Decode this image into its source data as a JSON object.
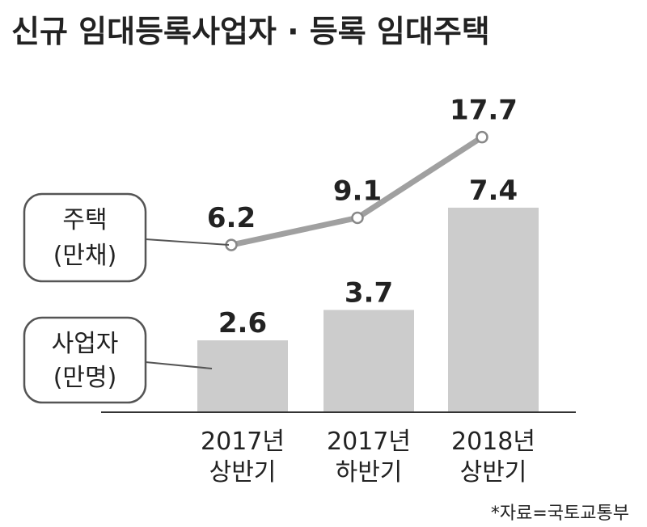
{
  "chart_data": {
    "type": "bar",
    "title": "신규 임대등록사업자 · 등록 임대주택",
    "categories": [
      [
        "2017년",
        "상반기"
      ],
      [
        "2017년",
        "하반기"
      ],
      [
        "2018년",
        "상반기"
      ]
    ],
    "series": [
      {
        "type": "bar",
        "label": [
          "사업자",
          "(만명)"
        ],
        "values": [
          2.6,
          3.7,
          7.4
        ],
        "value_labels": [
          "2.6",
          "3.7",
          "7.4"
        ]
      },
      {
        "type": "line",
        "label": [
          "주택",
          "(만채)"
        ],
        "values": [
          6.2,
          9.1,
          17.7
        ],
        "value_labels": [
          "6.2",
          "9.1",
          "17.7"
        ]
      }
    ],
    "colors": {
      "bar": "#cccccc",
      "line": "#a0a0a0",
      "marker_fill": "#ffffff"
    },
    "grid": false,
    "source": "*자료=국토교통부"
  }
}
